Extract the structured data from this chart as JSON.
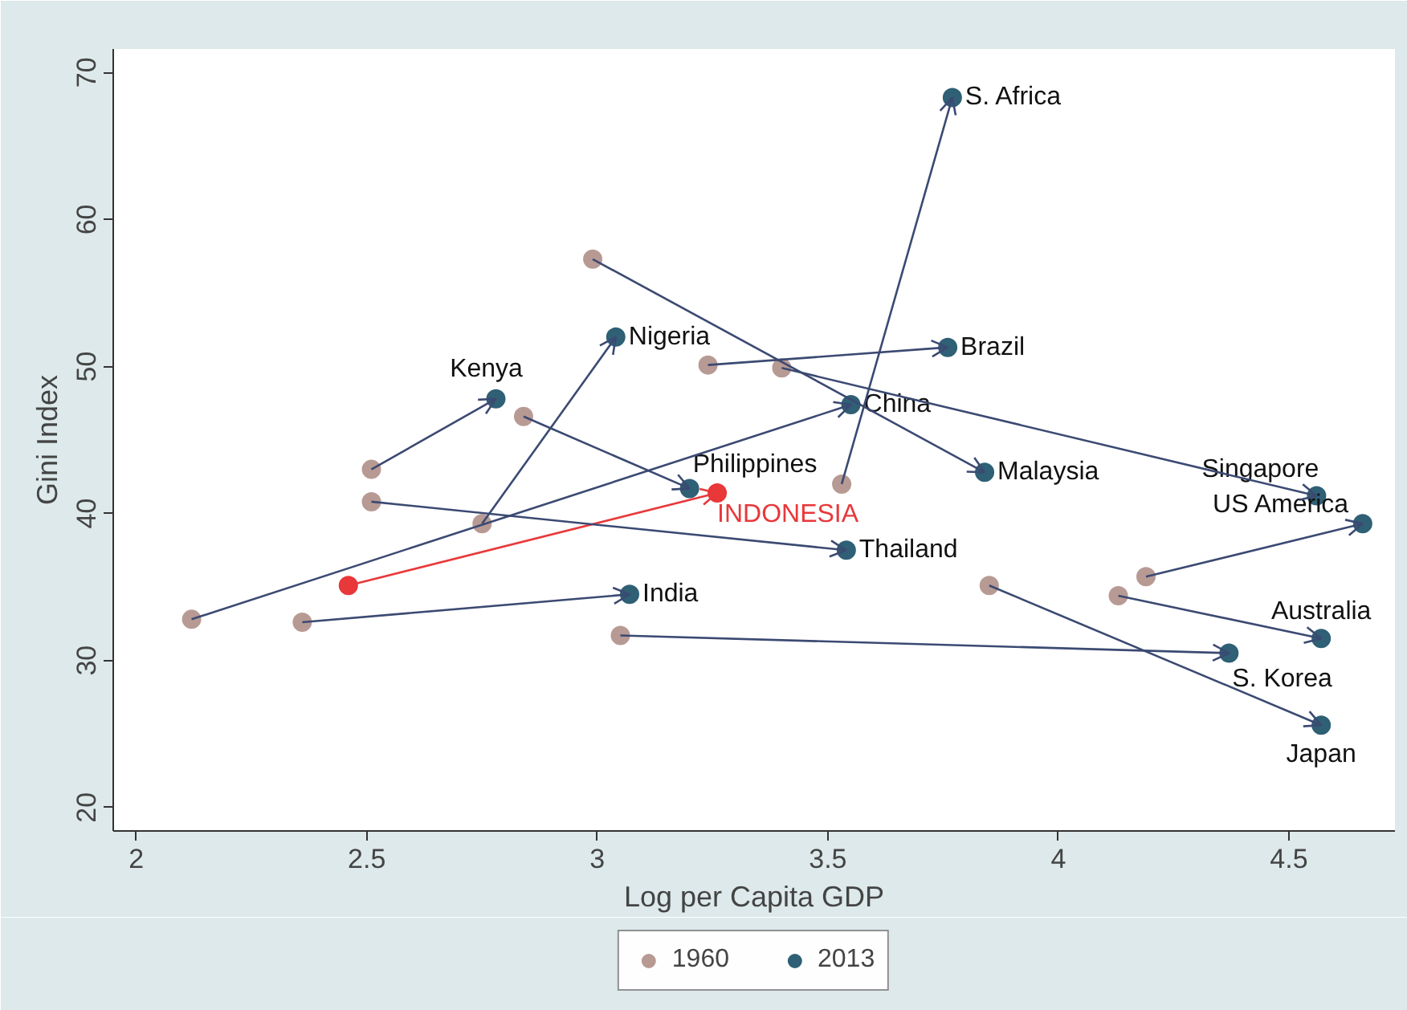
{
  "chart_data": {
    "type": "scatter",
    "xlabel": "Log per Capita GDP",
    "ylabel": "Gini Index",
    "xlim": [
      1.95,
      4.73
    ],
    "ylim": [
      18.4,
      71.6
    ],
    "xticks": [
      2,
      2.5,
      3,
      3.5,
      4,
      4.5
    ],
    "yticks": [
      20,
      30,
      40,
      50,
      60,
      70
    ],
    "grid": false,
    "legend": "bottom",
    "marker": "circle",
    "series": [
      {
        "name": "1960",
        "color": "#b89a94",
        "colors": [
          "#b89a94",
          "#b89a94",
          "#b89a94",
          "#b89a94",
          "#b89a94",
          "#b89a94",
          "#b89a94",
          "#b89a94",
          "#e8383a",
          "#b89a94",
          "#b89a94",
          "#b89a94",
          "#b89a94",
          "#b89a94",
          "#b89a94"
        ],
        "x": [
          3.53,
          3.24,
          2.99,
          3.4,
          2.75,
          2.51,
          2.84,
          2.12,
          2.46,
          2.51,
          2.36,
          4.19,
          3.05,
          4.13,
          3.85
        ],
        "values": [
          42.0,
          50.1,
          57.3,
          49.9,
          39.3,
          43.0,
          46.6,
          32.8,
          35.1,
          40.8,
          32.6,
          35.7,
          31.7,
          34.4,
          35.1
        ]
      },
      {
        "name": "2013",
        "color": "#2f6075",
        "colors": [
          "#2f6075",
          "#2f6075",
          "#2f6075",
          "#2f6075",
          "#2f6075",
          "#2f6075",
          "#2f6075",
          "#2f6075",
          "#e8383a",
          "#2f6075",
          "#2f6075",
          "#2f6075",
          "#2f6075",
          "#2f6075",
          "#2f6075"
        ],
        "x": [
          3.77,
          3.76,
          3.84,
          4.56,
          3.04,
          2.78,
          3.2,
          3.55,
          3.26,
          3.54,
          3.07,
          4.66,
          4.37,
          4.57,
          4.57
        ],
        "values": [
          68.3,
          51.3,
          42.8,
          41.2,
          52.0,
          47.8,
          41.7,
          47.4,
          41.4,
          37.5,
          34.5,
          39.3,
          30.5,
          31.5,
          25.6
        ]
      }
    ],
    "annotations": [
      {
        "text": "S. Africa",
        "x": 3.77,
        "y": 68.3
      },
      {
        "text": "Brazil",
        "x": 3.76,
        "y": 51.3
      },
      {
        "text": "Malaysia",
        "x": 3.84,
        "y": 42.8
      },
      {
        "text": "Singapore",
        "x": 4.56,
        "y": 41.2
      },
      {
        "text": "Nigeria",
        "x": 3.04,
        "y": 52.0
      },
      {
        "text": "Kenya",
        "x": 2.78,
        "y": 47.8
      },
      {
        "text": "Philippines",
        "x": 3.2,
        "y": 41.7
      },
      {
        "text": "China",
        "x": 3.55,
        "y": 47.4
      },
      {
        "text": "INDONESIA",
        "x": 3.26,
        "y": 41.4
      },
      {
        "text": "Thailand",
        "x": 3.54,
        "y": 37.5
      },
      {
        "text": "India",
        "x": 3.07,
        "y": 34.5
      },
      {
        "text": "US America",
        "x": 4.66,
        "y": 39.3
      },
      {
        "text": "S. Korea",
        "x": 4.37,
        "y": 30.5
      },
      {
        "text": "Australia",
        "x": 4.57,
        "y": 31.5
      },
      {
        "text": "Japan",
        "x": 4.57,
        "y": 25.6
      }
    ]
  }
}
